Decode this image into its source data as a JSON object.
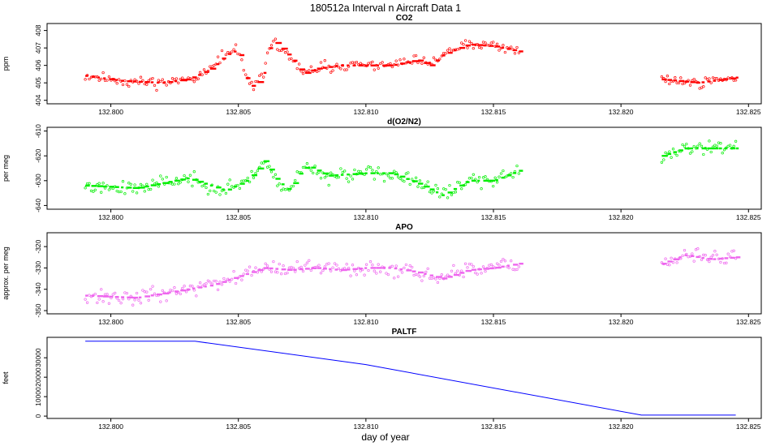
{
  "title": "180512a   Interval n Aircraft Data 1",
  "xlabel": "day of year",
  "colors": {
    "co2": "#ff0000",
    "o2n2": "#00ee00",
    "apo": "#ee66ee",
    "paltf": "#0000ff"
  },
  "chart_data": [
    {
      "id": "co2",
      "type": "scatter",
      "title": "CO2",
      "ylabel": "ppm",
      "xlim": [
        132.7975,
        132.8255
      ],
      "ylim": [
        403.8,
        408.4
      ],
      "xticks": [
        132.8,
        132.805,
        132.81,
        132.815,
        132.82,
        132.825
      ],
      "xtick_labels": [
        "132.800",
        "132.805",
        "132.810",
        "132.815",
        "132.820",
        "132.825"
      ],
      "yticks": [
        404,
        405,
        406,
        407,
        408
      ],
      "ytick_labels": [
        "404",
        "405",
        "406",
        "407",
        "408"
      ],
      "series": [
        {
          "name": "CO2",
          "noise": 0.28,
          "seed": 11,
          "n_per_segment": [
            220,
            40
          ],
          "segments": [
            [
              [
                132.799,
                405.4
              ],
              [
                132.8005,
                405.1
              ],
              [
                132.802,
                405.0
              ],
              [
                132.803,
                405.2
              ],
              [
                132.8035,
                405.5
              ],
              [
                132.804,
                405.9
              ],
              [
                132.8045,
                406.6
              ],
              [
                132.805,
                406.9
              ],
              [
                132.8053,
                405.2
              ],
              [
                132.8056,
                404.7
              ],
              [
                132.806,
                405.6
              ],
              [
                132.8063,
                407.5
              ],
              [
                132.8068,
                406.8
              ],
              [
                132.8072,
                406.2
              ],
              [
                132.8075,
                405.5
              ],
              [
                132.808,
                405.8
              ],
              [
                132.809,
                406.0
              ],
              [
                132.81,
                406.0
              ],
              [
                132.811,
                406.0
              ],
              [
                132.812,
                406.3
              ],
              [
                132.8125,
                406.0
              ],
              [
                132.813,
                406.6
              ],
              [
                132.814,
                407.2
              ],
              [
                132.815,
                407.1
              ],
              [
                132.816,
                406.8
              ]
            ],
            [
              [
                132.8216,
                405.2
              ],
              [
                132.823,
                405.0
              ],
              [
                132.8245,
                405.3
              ]
            ]
          ]
        }
      ]
    },
    {
      "id": "o2n2",
      "type": "scatter",
      "title": "d(O2/N2)",
      "ylabel": "per meg",
      "xlim": [
        132.7975,
        132.8255
      ],
      "ylim": [
        -641.5,
        -608.5
      ],
      "xticks": [
        132.8,
        132.805,
        132.81,
        132.815,
        132.82,
        132.825
      ],
      "xtick_labels": [
        "132.800",
        "132.805",
        "132.810",
        "132.815",
        "132.820",
        "132.825"
      ],
      "yticks": [
        -640,
        -630,
        -620,
        -610
      ],
      "ytick_labels": [
        "-640",
        "-630",
        "-620",
        "-610"
      ],
      "series": [
        {
          "name": "d(O2/N2)",
          "noise": 2.5,
          "seed": 23,
          "n_per_segment": [
            220,
            40
          ],
          "segments": [
            [
              [
                132.799,
                -632
              ],
              [
                132.801,
                -633
              ],
              [
                132.803,
                -629
              ],
              [
                132.8045,
                -634
              ],
              [
                132.8053,
                -630
              ],
              [
                132.8056,
                -627
              ],
              [
                132.806,
                -622
              ],
              [
                132.8065,
                -630
              ],
              [
                132.807,
                -634
              ],
              [
                132.8073,
                -628
              ],
              [
                132.8077,
                -624
              ],
              [
                132.8085,
                -628
              ],
              [
                132.81,
                -627
              ],
              [
                132.811,
                -627
              ],
              [
                132.812,
                -631
              ],
              [
                132.813,
                -636
              ],
              [
                132.814,
                -630
              ],
              [
                132.815,
                -630
              ],
              [
                132.816,
                -626
              ]
            ],
            [
              [
                132.8216,
                -620
              ],
              [
                132.8225,
                -617
              ],
              [
                132.8235,
                -617
              ],
              [
                132.8245,
                -617
              ]
            ]
          ]
        }
      ]
    },
    {
      "id": "apo",
      "type": "scatter",
      "title": "APO",
      "ylabel": "approx. per meg",
      "xlim": [
        132.7975,
        132.8255
      ],
      "ylim": [
        -351.5,
        -313.5
      ],
      "xticks": [
        132.8,
        132.805,
        132.81,
        132.815,
        132.82,
        132.825
      ],
      "xtick_labels": [
        "132.800",
        "132.805",
        "132.810",
        "132.815",
        "132.820",
        "132.825"
      ],
      "yticks": [
        -350,
        -340,
        -330,
        -320
      ],
      "ytick_labels": [
        "-350",
        "-340",
        "-330",
        "-320"
      ],
      "series": [
        {
          "name": "APO",
          "noise": 3.2,
          "seed": 37,
          "n_per_segment": [
            220,
            40
          ],
          "segments": [
            [
              [
                132.799,
                -343
              ],
              [
                132.801,
                -344
              ],
              [
                132.803,
                -340
              ],
              [
                132.804,
                -338
              ],
              [
                132.805,
                -334
              ],
              [
                132.806,
                -330
              ],
              [
                132.807,
                -331
              ],
              [
                132.808,
                -330
              ],
              [
                132.809,
                -331
              ],
              [
                132.81,
                -330
              ],
              [
                132.811,
                -330
              ],
              [
                132.812,
                -332
              ],
              [
                132.813,
                -335
              ],
              [
                132.814,
                -331
              ],
              [
                132.815,
                -330
              ],
              [
                132.816,
                -328
              ]
            ],
            [
              [
                132.8216,
                -328
              ],
              [
                132.8225,
                -324
              ],
              [
                132.8235,
                -326
              ],
              [
                132.8245,
                -325
              ]
            ]
          ]
        }
      ]
    },
    {
      "id": "paltf",
      "type": "line",
      "title": "PALTF",
      "ylabel": "feet",
      "xlim": [
        132.7975,
        132.8255
      ],
      "ylim": [
        -1200,
        40500
      ],
      "xticks": [
        132.8,
        132.805,
        132.81,
        132.815,
        132.82,
        132.825
      ],
      "xtick_labels": [
        "132.800",
        "132.805",
        "132.810",
        "132.815",
        "132.820",
        "132.825"
      ],
      "yticks": [
        0,
        10000,
        20000,
        30000
      ],
      "ytick_labels": [
        "0",
        "10000",
        "20000",
        "30000"
      ],
      "series": [
        {
          "name": "PALTF",
          "x": [
            132.799,
            132.8033,
            132.81,
            132.8208,
            132.8245
          ],
          "y": [
            38500,
            38500,
            26500,
            500,
            500
          ]
        }
      ]
    }
  ]
}
